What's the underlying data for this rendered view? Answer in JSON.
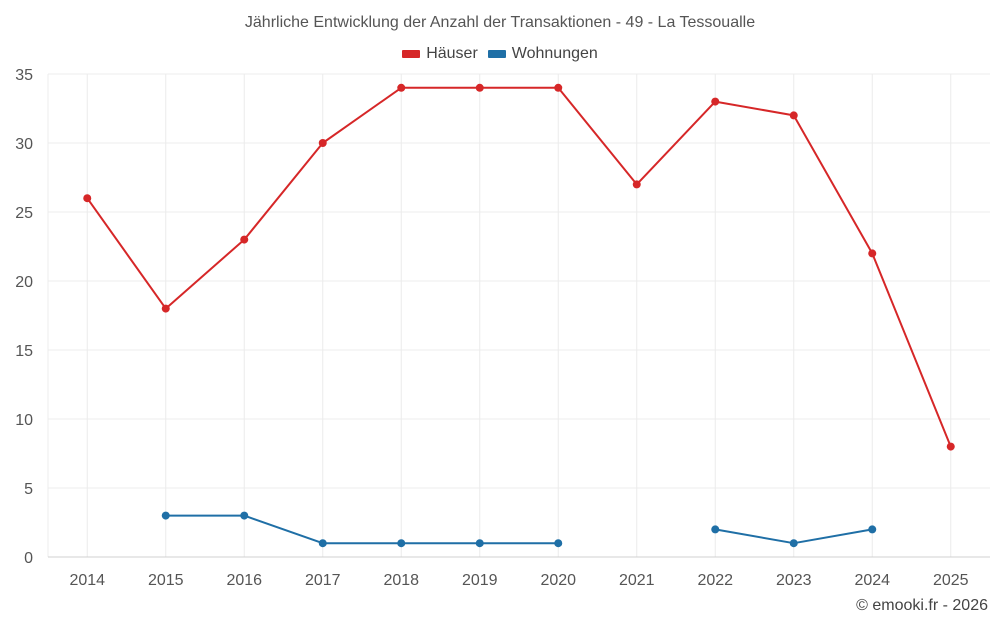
{
  "chart_data": {
    "type": "line",
    "title": "Jährliche Entwicklung der Anzahl der Transaktionen - 49 - La Tessoualle",
    "xlabel": "",
    "ylabel": "",
    "categories": [
      "2014",
      "2015",
      "2016",
      "2017",
      "2018",
      "2019",
      "2020",
      "2021",
      "2022",
      "2023",
      "2024",
      "2025"
    ],
    "ylim": [
      0,
      35
    ],
    "yticks": [
      0,
      5,
      10,
      15,
      20,
      25,
      30,
      35
    ],
    "grid": true,
    "legend_position": "top-center",
    "series": [
      {
        "name": "Häuser",
        "color": "#d62728",
        "values": [
          26,
          18,
          23,
          30,
          34,
          34,
          34,
          27,
          33,
          32,
          22,
          8
        ]
      },
      {
        "name": "Wohnungen",
        "color": "#1f6fa6",
        "values": [
          null,
          3,
          3,
          1,
          1,
          1,
          1,
          null,
          2,
          1,
          2,
          null
        ]
      }
    ]
  },
  "credit": "© emooki.fr - 2026"
}
